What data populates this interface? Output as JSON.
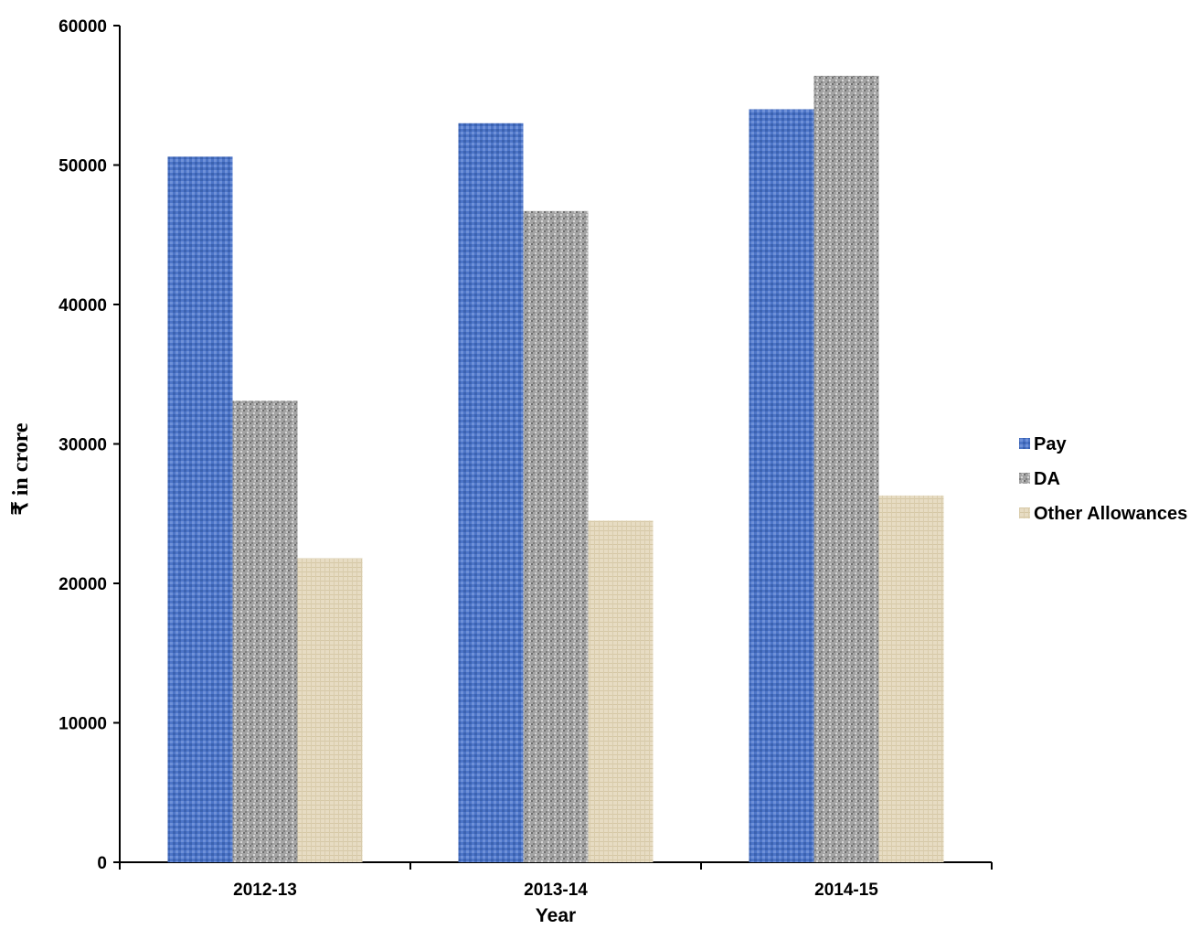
{
  "chart_data": {
    "type": "bar",
    "title": "",
    "xlabel": "Year",
    "ylabel": "₹ in crore",
    "categories": [
      "2012-13",
      "2013-14",
      "2014-15"
    ],
    "series": [
      {
        "name": "Pay",
        "values": [
          50600,
          53000,
          54000
        ],
        "color": "#4a72c4"
      },
      {
        "name": "DA",
        "values": [
          33100,
          46700,
          56400
        ],
        "color": "#9a9a9a"
      },
      {
        "name": "Other Allowances",
        "values": [
          21800,
          24500,
          26300
        ],
        "color": "#e4d8bd"
      }
    ],
    "ylim": [
      0,
      60000
    ],
    "yticks": [
      "0",
      "10000",
      "20000",
      "30000",
      "40000",
      "50000",
      "60000"
    ],
    "grid": false,
    "legend_position": "right"
  }
}
